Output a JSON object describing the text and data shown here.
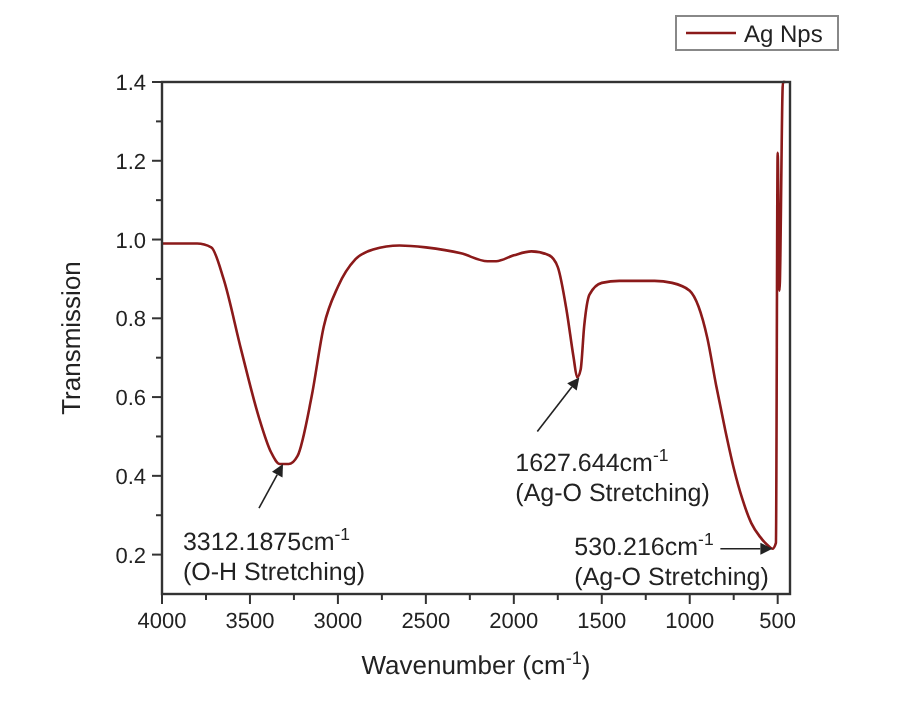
{
  "chart_data": {
    "type": "line",
    "xlabel": "Wavenumber (cm$^{-1}$)",
    "ylabel": "Transmission",
    "xlim": [
      4000,
      430
    ],
    "xticks": [
      4000,
      3500,
      3000,
      2500,
      2000,
      1500,
      1000,
      500
    ],
    "ylim": [
      0.1,
      1.4
    ],
    "yticks": [
      {
        "value": 0.2,
        "label": "0.2"
      },
      {
        "value": 0.4,
        "label": "0.4"
      },
      {
        "value": 0.6,
        "label": "0.6"
      },
      {
        "value": 0.8,
        "label": "0.8"
      },
      {
        "value": 1.0,
        "label": "1.0"
      },
      {
        "value": 1.2,
        "label": "1.2"
      },
      {
        "value": 1.4,
        "label": "1.4"
      }
    ],
    "legend": "top right",
    "grid": false,
    "series": [
      {
        "name": "Ag Nps",
        "color": "#8b1a1a",
        "x": [
          4000,
          3800,
          3720,
          3650,
          3550,
          3450,
          3380,
          3330,
          3280,
          3230,
          3150,
          3080,
          3000,
          2900,
          2800,
          2650,
          2500,
          2300,
          2150,
          2100,
          2000,
          1900,
          1800,
          1750,
          1700,
          1660,
          1640,
          1620,
          1600,
          1570,
          1500,
          1400,
          1200,
          1100,
          1000,
          950,
          900,
          850,
          800,
          750,
          700,
          650,
          600,
          560,
          530,
          510,
          500,
          490,
          470,
          460
        ],
        "values": [
          0.99,
          0.99,
          0.98,
          0.9,
          0.72,
          0.55,
          0.46,
          0.43,
          0.43,
          0.45,
          0.6,
          0.78,
          0.88,
          0.95,
          0.975,
          0.985,
          0.98,
          0.965,
          0.945,
          0.945,
          0.96,
          0.97,
          0.96,
          0.93,
          0.82,
          0.7,
          0.65,
          0.67,
          0.78,
          0.86,
          0.89,
          0.895,
          0.895,
          0.89,
          0.87,
          0.83,
          0.75,
          0.63,
          0.52,
          0.42,
          0.34,
          0.28,
          0.245,
          0.225,
          0.215,
          0.23,
          1.22,
          0.87,
          1.4,
          1.4
        ]
      }
    ],
    "annotations": [
      {
        "text": "3312.1875cm$^{-1}$\n(O-H Stretching)",
        "x": 3312.1875,
        "y": 0.43
      },
      {
        "text": "1627.644cm$^{-1}$\n(Ag-O Stretching)",
        "x": 1627.644,
        "y": 0.65
      },
      {
        "text": "530.216cm$^{-1}$\n(Ag-O Stretching)",
        "x": 530.216,
        "y": 0.215
      }
    ]
  }
}
